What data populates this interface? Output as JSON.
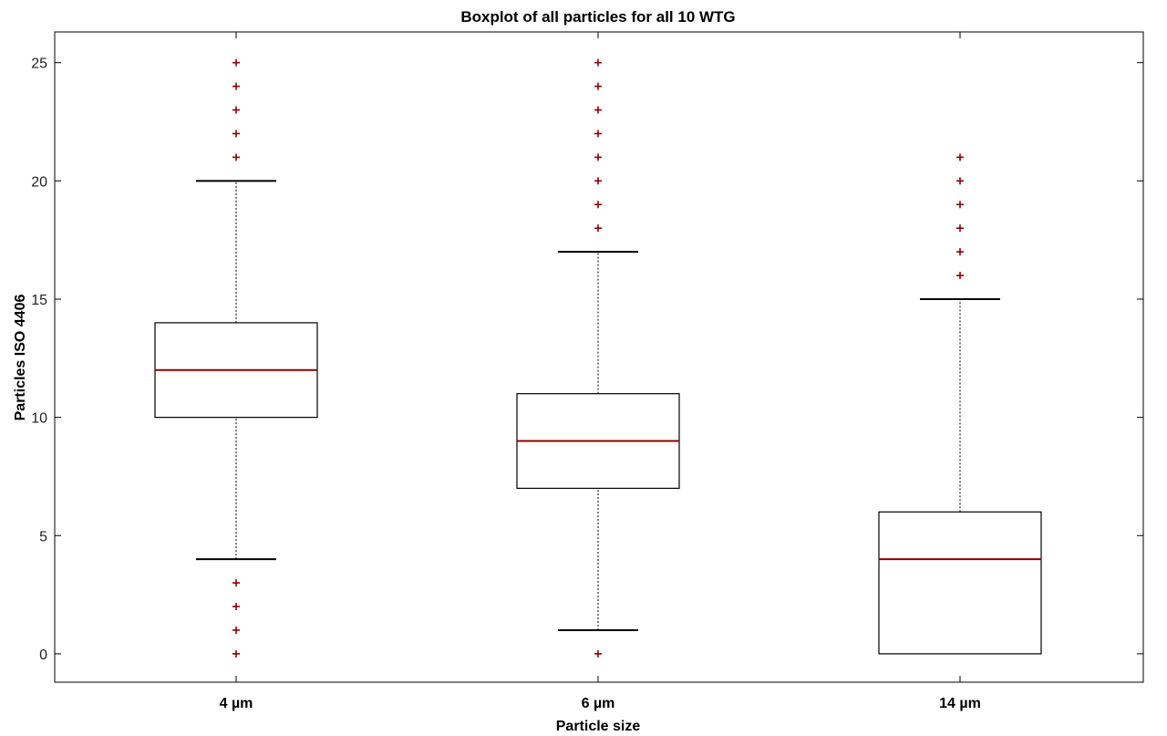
{
  "chart_data": {
    "type": "boxplot",
    "title": "Boxplot of all particles for all 10 WTG",
    "xlabel": "Particle size",
    "ylabel": "Particles ISO 4406",
    "categories": [
      "4 µm",
      "6 µm",
      "14 µm"
    ],
    "ylim": [
      -1.2,
      26.3
    ],
    "yticks": [
      0,
      5,
      10,
      15,
      20,
      25
    ],
    "grid": false,
    "boxes": [
      {
        "category": "4 µm",
        "whisker_low": 4,
        "q1": 10,
        "median": 12,
        "q3": 14,
        "whisker_high": 20,
        "outliers": [
          0,
          1,
          2,
          3,
          21,
          22,
          23,
          24,
          25
        ]
      },
      {
        "category": "6 µm",
        "whisker_low": 1,
        "q1": 7,
        "median": 9,
        "q3": 11,
        "whisker_high": 17,
        "outliers": [
          0,
          18,
          19,
          20,
          21,
          22,
          23,
          24,
          25
        ]
      },
      {
        "category": "14 µm",
        "whisker_low": 0,
        "q1": 0,
        "median": 4,
        "q3": 6,
        "whisker_high": 15,
        "outliers": [
          16,
          17,
          18,
          19,
          20,
          21
        ]
      }
    ],
    "colors": {
      "box": "#000000",
      "median": "#8b0000",
      "outlier": "#8b0000",
      "whisker": "#000000"
    }
  }
}
